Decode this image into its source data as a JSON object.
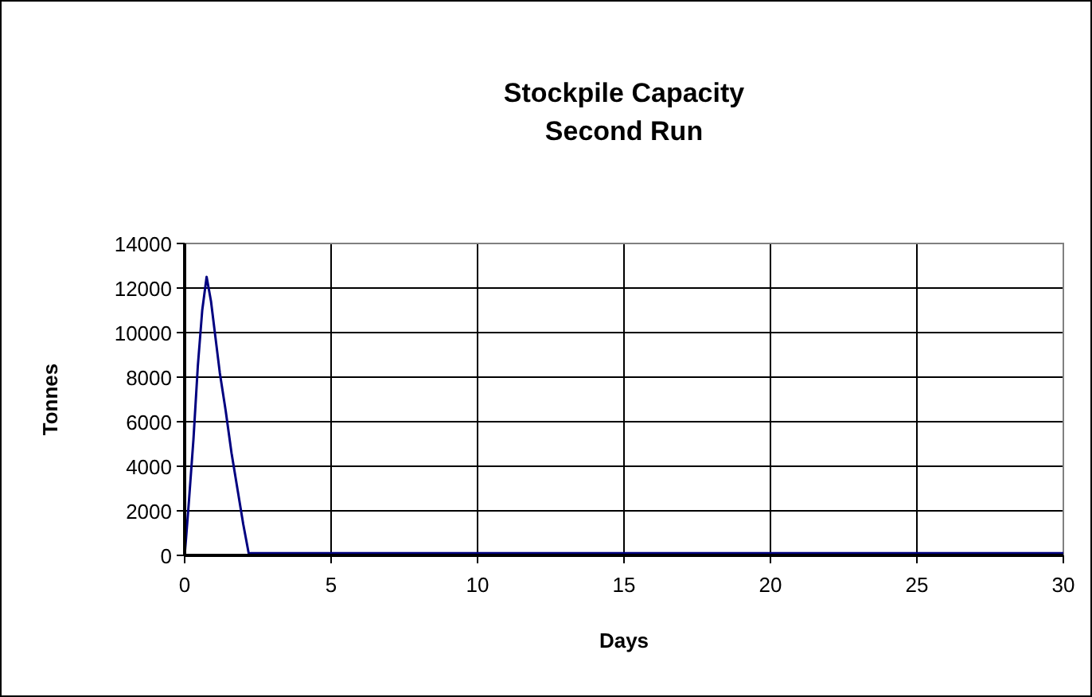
{
  "chart_data": {
    "type": "line",
    "title": "Stockpile Capacity\nSecond Run",
    "xlabel": "Days",
    "ylabel": "Tonnes",
    "x": [
      0,
      0.05,
      0.15,
      0.3,
      0.45,
      0.6,
      0.75,
      0.9,
      1.05,
      1.2,
      1.4,
      1.6,
      1.8,
      2.0,
      2.2,
      2.25,
      2.4,
      30
    ],
    "series": [
      {
        "color": "#000080",
        "values": [
          0,
          800,
          2500,
          5200,
          8500,
          11000,
          12500,
          11400,
          9800,
          8200,
          6500,
          4600,
          3000,
          1400,
          0,
          100,
          100,
          100
        ]
      }
    ],
    "xlim": [
      0,
      30
    ],
    "xticks": [
      0,
      5,
      10,
      15,
      20,
      25,
      30
    ],
    "ylim": [
      0,
      14000
    ],
    "yticks": [
      0,
      2000,
      4000,
      6000,
      8000,
      10000,
      12000,
      14000
    ],
    "grid": true,
    "marker": "none",
    "line_style": "solid"
  }
}
